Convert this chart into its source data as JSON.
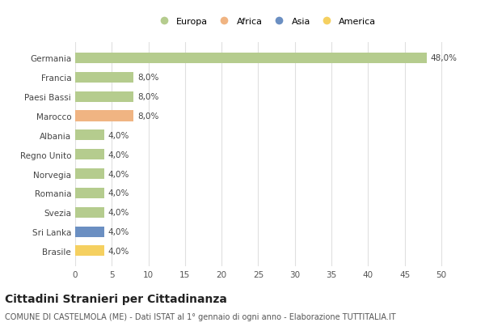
{
  "countries": [
    "Germania",
    "Francia",
    "Paesi Bassi",
    "Marocco",
    "Albania",
    "Regno Unito",
    "Norvegia",
    "Romania",
    "Svezia",
    "Sri Lanka",
    "Brasile"
  ],
  "values": [
    48.0,
    8.0,
    8.0,
    8.0,
    4.0,
    4.0,
    4.0,
    4.0,
    4.0,
    4.0,
    4.0
  ],
  "continents": [
    "Europa",
    "Europa",
    "Europa",
    "Africa",
    "Europa",
    "Europa",
    "Europa",
    "Europa",
    "Europa",
    "Asia",
    "America"
  ],
  "continent_colors": {
    "Europa": "#b5cc8e",
    "Africa": "#f0b482",
    "Asia": "#6b8fc2",
    "America": "#f5d060"
  },
  "legend_order": [
    "Europa",
    "Africa",
    "Asia",
    "America"
  ],
  "xlim": [
    0,
    52
  ],
  "xticks": [
    0,
    5,
    10,
    15,
    20,
    25,
    30,
    35,
    40,
    45,
    50
  ],
  "title": "Cittadini Stranieri per Cittadinanza",
  "subtitle": "COMUNE DI CASTELMOLA (ME) - Dati ISTAT al 1° gennaio di ogni anno - Elaborazione TUTTITALIA.IT",
  "bar_height": 0.55,
  "background_color": "#ffffff",
  "grid_color": "#e0e0e0",
  "label_fontsize": 7.5,
  "title_fontsize": 10,
  "subtitle_fontsize": 7
}
